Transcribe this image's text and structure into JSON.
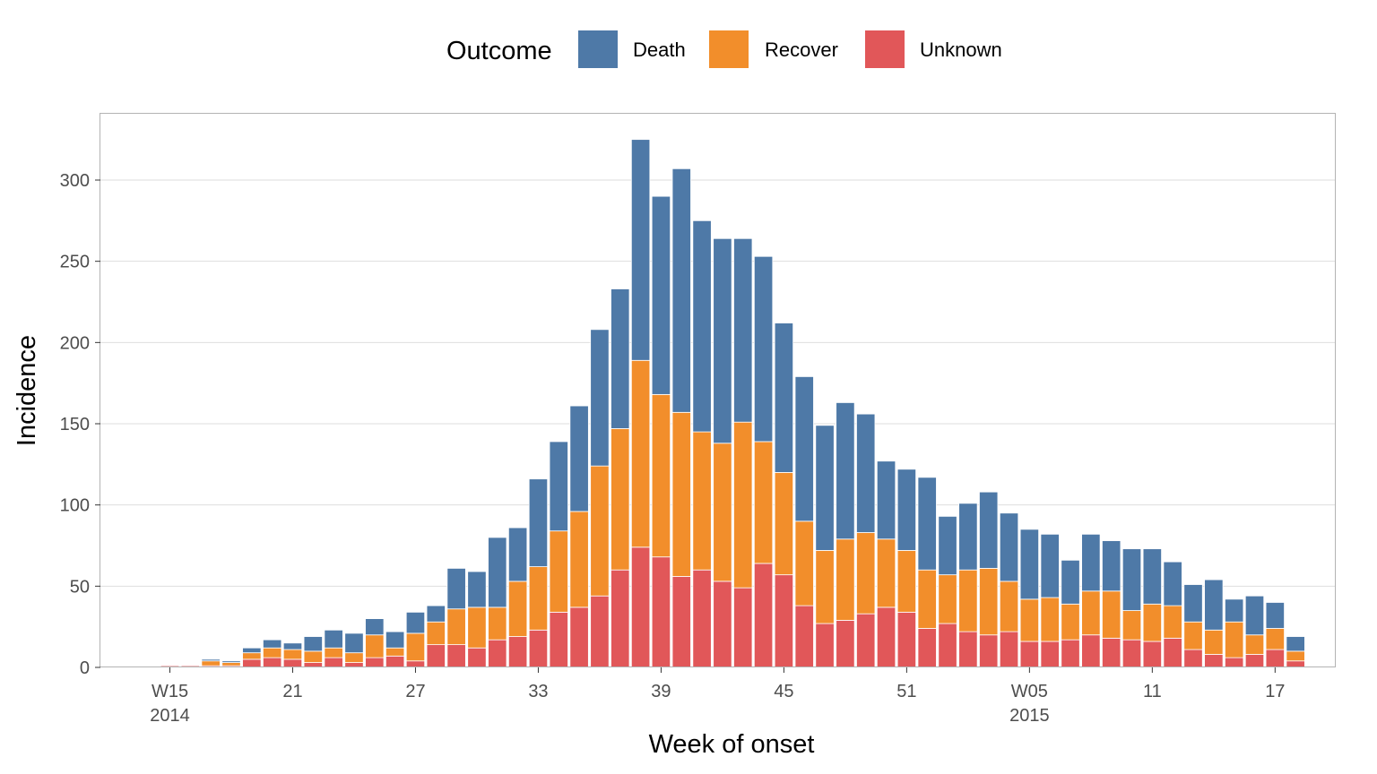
{
  "colors": {
    "Death": "#4E79A7",
    "Recover": "#F28E2B",
    "Unknown": "#E15759",
    "grid": "#dedede",
    "panel_border": "#b3b3b3",
    "tick_text": "#4d4d4d"
  },
  "chart_data": {
    "type": "bar",
    "stacked": true,
    "title": "",
    "xlabel": "Week of onset",
    "ylabel": "Incidence",
    "ylim": [
      0,
      330
    ],
    "grid": true,
    "legend_position": "top",
    "legend_title": "Outcome",
    "x": [
      "2014-W15",
      "2014-W16",
      "2014-W17",
      "2014-W18",
      "2014-W19",
      "2014-W20",
      "2014-W21",
      "2014-W22",
      "2014-W23",
      "2014-W24",
      "2014-W25",
      "2014-W26",
      "2014-W27",
      "2014-W28",
      "2014-W29",
      "2014-W30",
      "2014-W31",
      "2014-W32",
      "2014-W33",
      "2014-W34",
      "2014-W35",
      "2014-W36",
      "2014-W37",
      "2014-W38",
      "2014-W39",
      "2014-W40",
      "2014-W41",
      "2014-W42",
      "2014-W43",
      "2014-W44",
      "2014-W45",
      "2014-W46",
      "2014-W47",
      "2014-W48",
      "2014-W49",
      "2014-W50",
      "2014-W51",
      "2014-W52",
      "2015-W01",
      "2015-W02",
      "2015-W03",
      "2015-W04",
      "2015-W05",
      "2015-W06",
      "2015-W07",
      "2015-W08",
      "2015-W09",
      "2015-W10",
      "2015-W11",
      "2015-W12",
      "2015-W13",
      "2015-W14",
      "2015-W15",
      "2015-W16",
      "2015-W17",
      "2015-W18"
    ],
    "x_tick_labels": [
      "W15",
      "21",
      "27",
      "33",
      "39",
      "45",
      "51",
      "W05",
      "11",
      "17"
    ],
    "x_tick_sublabels": [
      "2014",
      "",
      "",
      "",
      "",
      "",
      "",
      "2015",
      "",
      ""
    ],
    "y_ticks": [
      0,
      50,
      100,
      150,
      200,
      250,
      300
    ],
    "series": [
      {
        "name": "Unknown",
        "values": [
          1,
          1,
          1,
          1,
          5,
          6,
          5,
          3,
          6,
          3,
          6,
          7,
          4,
          14,
          14,
          12,
          17,
          19,
          23,
          34,
          37,
          44,
          60,
          74,
          68,
          56,
          60,
          53,
          49,
          64,
          57,
          38,
          27,
          29,
          33,
          37,
          34,
          24,
          27,
          22,
          20,
          22,
          16,
          16,
          17,
          20,
          18,
          17,
          16,
          18,
          11,
          8,
          6,
          8,
          11,
          4
        ]
      },
      {
        "name": "Recover",
        "values": [
          0,
          0,
          3,
          2,
          4,
          6,
          6,
          7,
          6,
          6,
          14,
          5,
          17,
          14,
          22,
          25,
          20,
          34,
          39,
          50,
          59,
          80,
          87,
          115,
          100,
          101,
          85,
          85,
          102,
          75,
          63,
          52,
          45,
          50,
          50,
          42,
          38,
          36,
          30,
          38,
          41,
          31,
          26,
          27,
          22,
          27,
          29,
          18,
          23,
          20,
          17,
          15,
          22,
          12,
          13,
          6
        ]
      },
      {
        "name": "Death",
        "values": [
          0,
          0,
          1,
          1,
          3,
          5,
          4,
          9,
          11,
          12,
          10,
          10,
          13,
          10,
          25,
          22,
          43,
          33,
          54,
          55,
          65,
          84,
          86,
          136,
          122,
          150,
          130,
          126,
          113,
          114,
          92,
          89,
          77,
          84,
          73,
          48,
          50,
          57,
          36,
          41,
          47,
          42,
          43,
          39,
          27,
          35,
          31,
          38,
          34,
          27,
          23,
          31,
          14,
          24,
          16,
          9
        ]
      }
    ]
  }
}
